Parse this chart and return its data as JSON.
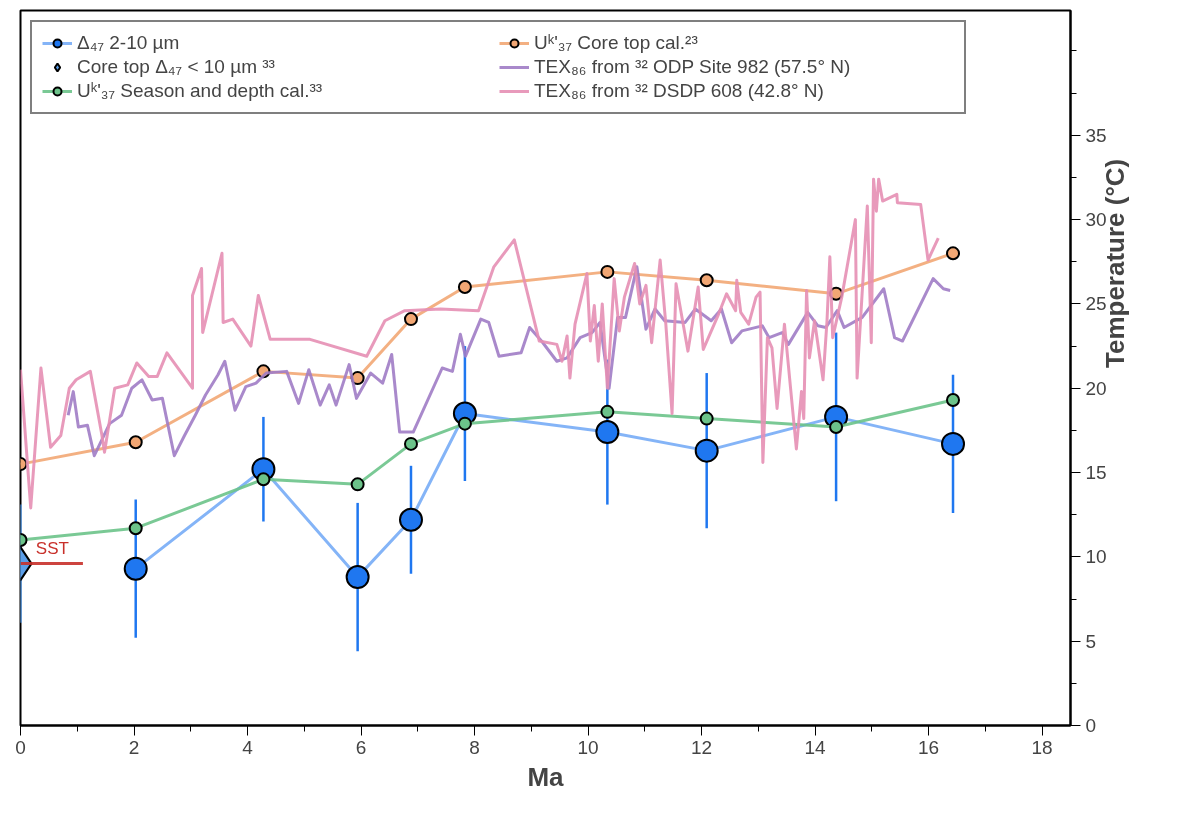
{
  "chart_data": {
    "type": "line",
    "xlabel": "Ma",
    "ylabel": "Temperature (°C)",
    "xlim": [
      0,
      18.5
    ],
    "ylim": [
      0,
      42.4
    ],
    "xticks": [
      0,
      2,
      4,
      6,
      8,
      10,
      12,
      14,
      16,
      18
    ],
    "yticks": [
      0,
      5,
      10,
      15,
      20,
      25,
      30,
      35
    ],
    "grid": false,
    "legend": "top",
    "line_style": "solid",
    "annotations": [
      {
        "text": "SST",
        "x": 0.2,
        "y": 9.6
      }
    ],
    "series": [
      {
        "name": "Δ₄₇ 2-10 µm",
        "marker": "circle",
        "color": "#1f77f0",
        "x": [
          2.03,
          4.28,
          5.94,
          6.88,
          7.83,
          10.34,
          12.09,
          14.37,
          16.43
        ],
        "values": [
          9.3,
          15.2,
          8.8,
          12.2,
          18.5,
          17.4,
          16.3,
          18.3,
          16.7
        ],
        "errors": [
          4.1,
          3.1,
          4.4,
          3.2,
          4.0,
          4.3,
          4.6,
          5.0,
          4.1
        ]
      },
      {
        "name": "Core top Δ₄₇ < 10 µm ³³",
        "type": "scatter",
        "marker": "diamond",
        "color": "#5b9ee8",
        "x": [
          0
        ],
        "values": [
          9.6
        ],
        "errors": [
          3.5
        ]
      },
      {
        "name": "Uᵏ'₃₇ Season and depth cal.³³",
        "marker": "circle",
        "color": "#6cc38a",
        "x": [
          0,
          2.03,
          4.28,
          5.94,
          6.88,
          7.83,
          10.34,
          12.09,
          14.37,
          16.43
        ],
        "values": [
          11.0,
          11.7,
          14.6,
          14.3,
          16.7,
          17.9,
          18.6,
          18.2,
          17.7,
          19.3
        ]
      },
      {
        "name": "Uᵏ'₃₇ Core top cal.²³",
        "marker": "circle",
        "color": "#f2a774",
        "x": [
          0,
          2.03,
          4.28,
          5.94,
          6.88,
          7.83,
          10.34,
          12.09,
          14.37,
          16.43
        ],
        "values": [
          15.5,
          16.8,
          21.0,
          20.6,
          24.1,
          26.0,
          26.9,
          26.4,
          25.6,
          28.0
        ]
      },
      {
        "name": "TEX₈₆ from ³² ODP Site 982 (57.5° N)",
        "marker": "none",
        "color": "#a07cc5",
        "x": [
          0.84,
          0.93,
          1.02,
          1.18,
          1.3,
          1.57,
          1.78,
          1.96,
          2.14,
          2.32,
          2.5,
          2.71,
          2.89,
          3.08,
          3.26,
          3.48,
          3.6,
          3.78,
          3.97,
          4.15,
          4.33,
          4.69,
          4.9,
          5.08,
          5.28,
          5.44,
          5.56,
          5.79,
          5.92,
          6.17,
          6.38,
          6.54,
          6.68,
          6.92,
          7.43,
          7.61,
          7.75,
          7.84,
          8.11,
          8.25,
          8.43,
          8.82,
          8.97,
          9.18,
          9.45,
          9.63,
          9.86,
          10.07,
          10.21,
          10.37,
          10.52,
          10.66,
          10.86,
          11.02,
          11.18,
          11.35,
          11.71,
          11.89,
          12.17,
          12.35,
          12.53,
          12.71,
          13.07,
          13.19,
          13.42,
          13.53,
          13.87,
          14.05,
          14.19,
          14.39,
          14.51,
          14.83,
          15.21,
          15.4,
          15.54,
          16.08,
          16.26,
          16.38
        ],
        "values": [
          18.4,
          19.8,
          17.7,
          17.8,
          16.0,
          17.9,
          18.4,
          20.0,
          20.5,
          19.3,
          19.4,
          16.0,
          17.2,
          18.4,
          19.6,
          20.8,
          21.6,
          18.7,
          20.1,
          20.3,
          20.9,
          21.0,
          19.1,
          21.1,
          19.0,
          20.2,
          19.0,
          21.4,
          19.4,
          20.9,
          20.3,
          22.0,
          17.4,
          17.4,
          21.2,
          21.0,
          23.2,
          21.9,
          24.1,
          23.9,
          21.9,
          22.1,
          23.6,
          22.8,
          21.6,
          21.8,
          23.0,
          23.3,
          23.9,
          20.0,
          24.2,
          24.2,
          27.2,
          23.5,
          24.7,
          24.0,
          23.9,
          24.7,
          24.0,
          24.7,
          22.7,
          23.4,
          23.7,
          23.0,
          23.3,
          22.6,
          24.5,
          23.7,
          23.6,
          24.6,
          23.6,
          24.2,
          25.9,
          23.0,
          22.8,
          26.5,
          25.9,
          25.8
        ]
      },
      {
        "name": "TEX₈₆ from ³² DSDP 608 (42.8° N)",
        "marker": "none",
        "color": "#e58fb4",
        "x": [
          0,
          0.18,
          0.36,
          0.53,
          0.71,
          0.86,
          0.98,
          1.23,
          1.43,
          1.48,
          1.66,
          1.89,
          2.05,
          2.26,
          2.41,
          2.58,
          3.03,
          3.03,
          3.19,
          3.21,
          3.55,
          3.57,
          3.74,
          4.06,
          4.19,
          4.4,
          5.1,
          6.1,
          6.42,
          6.77,
          7.4,
          8.07,
          8.34,
          8.7,
          9.14,
          9.45,
          9.54,
          9.63,
          9.68,
          9.77,
          9.98,
          10.04,
          10.11,
          10.18,
          10.25,
          10.34,
          10.46,
          10.55,
          10.64,
          10.82,
          10.91,
          11.02,
          11.12,
          11.27,
          11.37,
          11.48,
          11.55,
          11.76,
          11.94,
          12.03,
          12.3,
          12.44,
          12.6,
          12.62,
          12.69,
          12.83,
          12.96,
          13.03,
          13.08,
          13.16,
          13.24,
          13.33,
          13.46,
          13.67,
          13.76,
          13.8,
          13.85,
          13.9,
          13.99,
          14.14,
          14.21,
          14.26,
          14.31,
          14.47,
          14.71,
          14.74,
          14.92,
          14.99,
          15.03,
          15.08,
          15.12,
          15.19,
          15.44,
          15.45,
          15.86,
          15.99,
          16.17
        ],
        "values": [
          21.1,
          12.9,
          21.2,
          16.5,
          17.2,
          20.0,
          20.5,
          21.0,
          17.3,
          16.2,
          20.0,
          20.2,
          21.5,
          20.7,
          20.7,
          22.1,
          20.0,
          25.5,
          27.1,
          23.3,
          28.0,
          23.9,
          24.1,
          22.5,
          25.5,
          22.9,
          22.9,
          21.9,
          24.0,
          24.6,
          24.7,
          24.6,
          27.2,
          28.8,
          22.8,
          22.6,
          21.6,
          23.1,
          20.6,
          23.8,
          26.8,
          22.8,
          24.9,
          21.6,
          25.0,
          20.0,
          26.5,
          23.4,
          25.4,
          27.4,
          25.0,
          26.1,
          22.7,
          27.6,
          23.8,
          18.5,
          26.2,
          22.2,
          26.0,
          22.3,
          24.4,
          25.6,
          24.6,
          26.4,
          24.5,
          23.8,
          25.4,
          25.7,
          15.6,
          23.0,
          22.4,
          18.8,
          23.8,
          16.4,
          19.8,
          18.2,
          25.8,
          21.8,
          24.0,
          20.5,
          24.0,
          27.8,
          23.0,
          25.4,
          30.0,
          20.6,
          30.8,
          22.7,
          32.4,
          30.5,
          32.4,
          31.1,
          31.5,
          31.0,
          30.9,
          27.6,
          28.9
        ]
      },
      {
        "marker": "none",
        "color": "#c8302a",
        "x": [
          0,
          1.1
        ],
        "values": [
          9.6,
          9.6
        ]
      }
    ]
  }
}
